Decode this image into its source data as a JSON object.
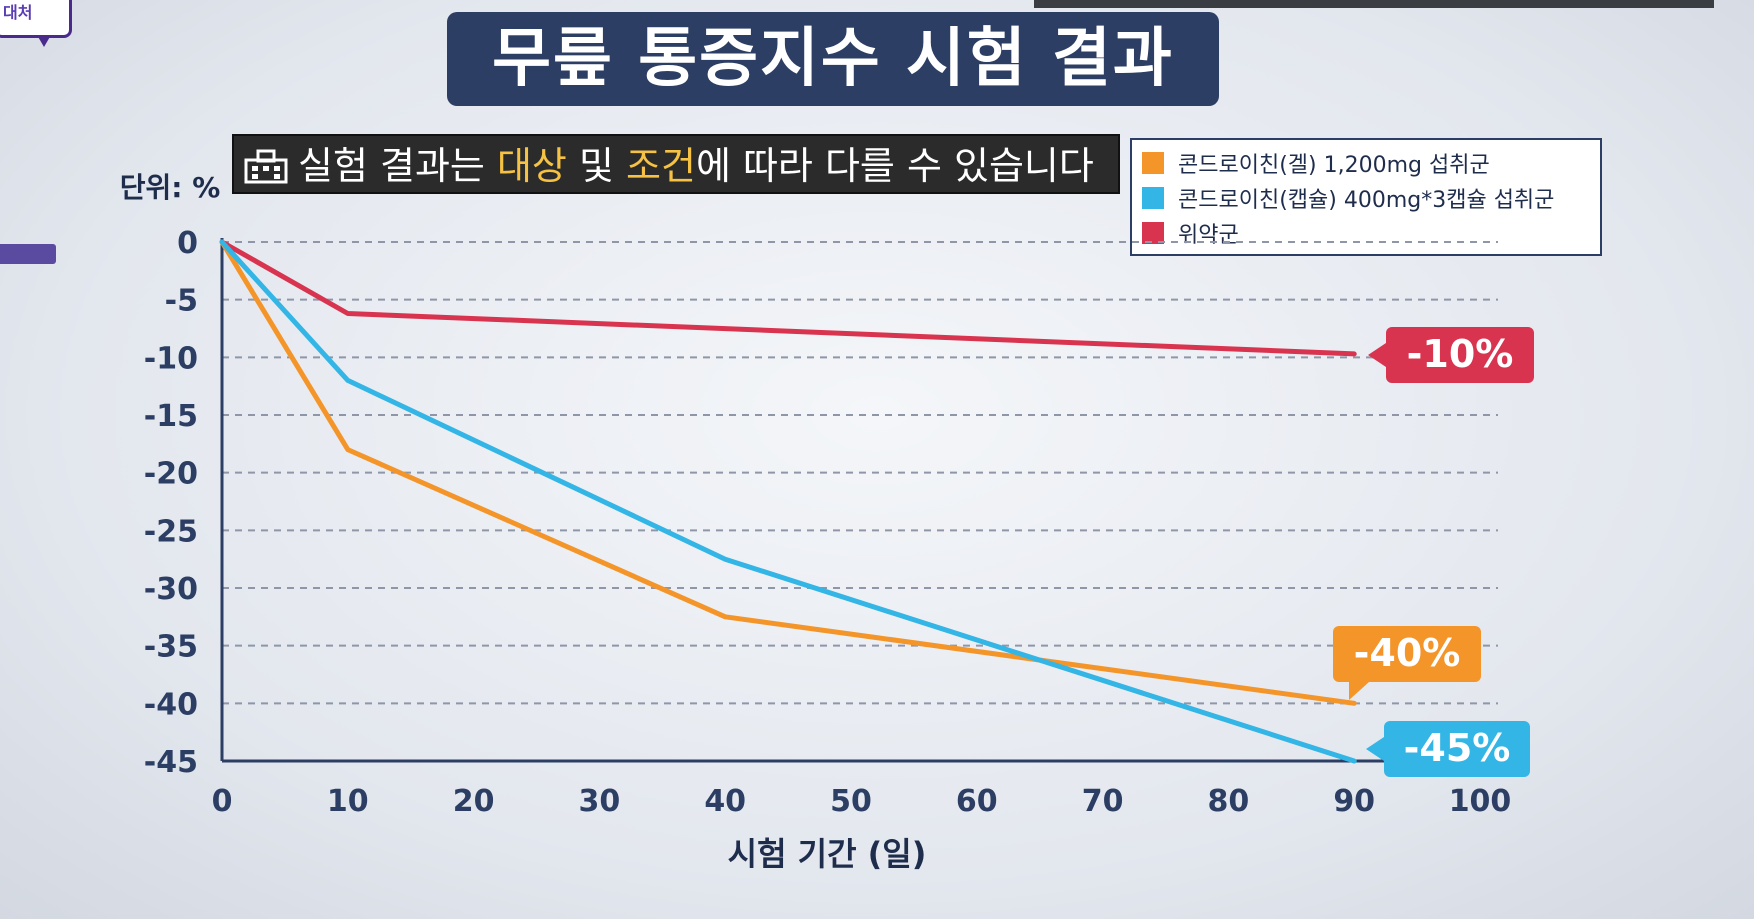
{
  "corner_badge": "대처",
  "title": "무릎 통증지수 시험 결과",
  "notice": {
    "text_before": "실험 결과는 ",
    "highlight1": "대상",
    "text_mid": " 및 ",
    "highlight2": "조건",
    "text_after": "에 따라 다를 수 있습니다"
  },
  "colors": {
    "orange": "#f4952a",
    "blue": "#33b5e6",
    "red": "#d8344f",
    "navy": "#2c3e63"
  },
  "chart_data": {
    "type": "line",
    "unit_label": "단위: %",
    "xlabel": "시험 기간 (일)",
    "ylabel": "",
    "xlim": [
      0,
      100
    ],
    "ylim": [
      -45,
      0
    ],
    "x_ticks": [
      0,
      10,
      20,
      30,
      40,
      50,
      60,
      70,
      80,
      90,
      100
    ],
    "y_ticks": [
      0,
      -5,
      -10,
      -15,
      -20,
      -25,
      -30,
      -35,
      -40,
      -45
    ],
    "grid": "horizontal-dashed",
    "legend_position": "top-right",
    "series": [
      {
        "name": "콘드로이친(겔) 1,200mg 섭취군",
        "color": "#f4952a",
        "x": [
          0,
          10,
          40,
          90
        ],
        "y": [
          0,
          -18,
          -32.5,
          -40
        ],
        "end_label": "-40%"
      },
      {
        "name": "콘드로이친(캡슐) 400mg*3캡슐 섭취군",
        "color": "#33b5e6",
        "x": [
          0,
          10,
          40,
          90
        ],
        "y": [
          0,
          -12,
          -27.5,
          -45
        ],
        "end_label": "-45%"
      },
      {
        "name": "위약군",
        "color": "#d8344f",
        "x": [
          0,
          10,
          90
        ],
        "y": [
          0,
          -6.2,
          -9.7
        ],
        "end_label": "-10%"
      }
    ]
  }
}
